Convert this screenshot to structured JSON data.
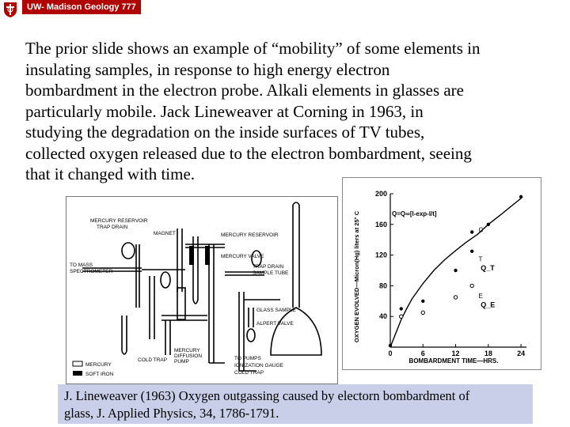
{
  "header": {
    "banner": "UW- Madison Geology  777"
  },
  "body": {
    "lines": [
      "The prior slide shows an example of “mobility” of some elements in",
      "insulating samples,  in response to high energy electron",
      "bombardment in the electron probe. Alkali elements in glasses are",
      "particularly mobile. Jack Lineweaver at Corning in 1963, in",
      "studying the degradation on the inside surfaces of TV tubes,",
      "collected oxygen released due to the electron bombardment, seeing",
      "that it changed with time."
    ]
  },
  "apparatus": {
    "labels": {
      "magnet": "MAGNET",
      "mercury_reservoir_left": "MERCURY RESERVOIR",
      "trap_drain_left": "TRAP DRAIN",
      "to_mass": "TO MASS",
      "spectrometer": "SPECTROMETER",
      "mercury_reservoir_right": "MERCURY RESERVOIR",
      "mercury_valve": "MERCURY VALVE",
      "trap_drain_right": "TRAP DRAIN",
      "sample_tube": "SAMPLE TUBE",
      "glass_sample": "GLASS SAMPLE",
      "alpert_valve": "ALPERT VALVE",
      "mercury_diffusion": "MERCURY",
      "diffusion": "DIFFUSION",
      "pump": "PUMP",
      "cold_trap_left": "COLD TRAP",
      "to_pumps": "TO PUMPS",
      "ionization_gauge": "IONIZATION GAUGE",
      "cold_trap_right": "COLD TRAP",
      "legend_mercury": "MERCURY",
      "legend_soft_iron": "SOFT IRON"
    }
  },
  "chart_data": {
    "type": "line",
    "ylabel": "OXYGEN EVOLVED—Micron(Hg) liters at 25° C",
    "xlabel": "BOMBARDMENT TIME—HRS.",
    "equation": "Q=Q∞[l-exp-l/t]",
    "xlim": [
      0,
      25
    ],
    "ylim": [
      0,
      200
    ],
    "xticks": [
      "0",
      "6",
      "12",
      "18",
      "24"
    ],
    "yticks": [
      "40",
      "80",
      "120",
      "160",
      "200"
    ],
    "curve_label_markers": [
      "C",
      "T",
      "E"
    ],
    "curve_labels": [
      "Q_T",
      "Q_E"
    ],
    "series": [
      {
        "values": [
          [
            0,
            0
          ],
          [
            1,
            18
          ],
          [
            2,
            36
          ],
          [
            3,
            50
          ],
          [
            4,
            63
          ],
          [
            6,
            83
          ],
          [
            8,
            100
          ],
          [
            10,
            114
          ],
          [
            12,
            126
          ],
          [
            14,
            137
          ],
          [
            16,
            147
          ],
          [
            18,
            160
          ],
          [
            20,
            171
          ],
          [
            24,
            194
          ]
        ]
      },
      {
        "values": [
          [
            0,
            2
          ],
          [
            2,
            50
          ],
          [
            6,
            60
          ],
          [
            12,
            100
          ],
          [
            15,
            125
          ],
          [
            15,
            150
          ],
          [
            18,
            160
          ],
          [
            24,
            196
          ]
        ]
      },
      {
        "values": [
          [
            2,
            40
          ],
          [
            6,
            45
          ],
          [
            12,
            65
          ],
          [
            15,
            80
          ]
        ]
      }
    ]
  },
  "citation": {
    "line1": "J. Lineweaver (1963) Oxygen outgassing caused by electorn bombardment of",
    "line2": "glass, J. Applied Physics, 34, 1786-1791."
  }
}
